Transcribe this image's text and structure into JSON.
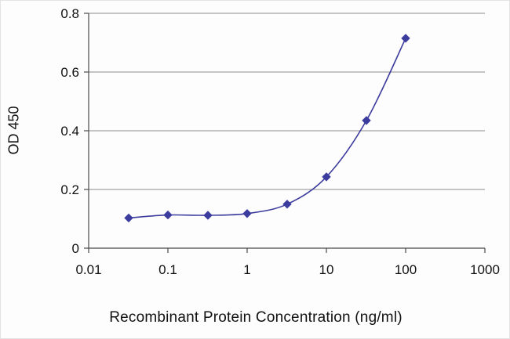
{
  "chart_data": {
    "type": "line",
    "title": "",
    "xlabel": "Recombinant Protein Concentration (ng/ml)",
    "ylabel": "OD 450",
    "x_scale": "log",
    "y_scale": "linear",
    "xlim": [
      0.01,
      1000
    ],
    "ylim": [
      0,
      0.8
    ],
    "x_ticks": [
      0.01,
      0.1,
      1,
      10,
      100,
      1000
    ],
    "x_tick_labels": [
      "0.01",
      "0.1",
      "1",
      "10",
      "100",
      "1000"
    ],
    "y_ticks": [
      0,
      0.2,
      0.4,
      0.6,
      0.8
    ],
    "y_tick_labels": [
      "0",
      "0.2",
      "0.4",
      "0.6",
      "0.8"
    ],
    "grid": "horizontal",
    "legend": "none",
    "marker": "diamond",
    "series": [
      {
        "name": "OD 450",
        "color": "#3c3c9e",
        "points": [
          {
            "x": 0.032,
            "y": 0.103
          },
          {
            "x": 0.1,
            "y": 0.113
          },
          {
            "x": 0.32,
            "y": 0.112
          },
          {
            "x": 1,
            "y": 0.118
          },
          {
            "x": 3.2,
            "y": 0.15
          },
          {
            "x": 10,
            "y": 0.243
          },
          {
            "x": 32,
            "y": 0.435
          },
          {
            "x": 100,
            "y": 0.715
          }
        ]
      }
    ],
    "colors": {
      "grid": "#8c8c8c",
      "axis": "#4a4a4a",
      "text": "#111111",
      "background": "#fdfdfd"
    }
  }
}
